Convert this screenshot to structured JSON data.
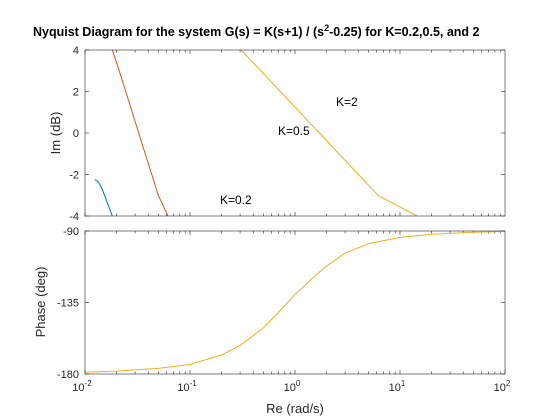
{
  "chart_data": [
    {
      "type": "line",
      "title_main": "Nyquist Diagram for the system G(s) = K(s+1) / (s",
      "title_sup": "2",
      "title_rest": "-0.25) for K=0.2,0.5, and 2",
      "xlabel": "",
      "ylabel": "Im (dB)",
      "ylim": [
        -4,
        4
      ],
      "yticks": [
        -4,
        -2,
        0,
        2,
        4
      ],
      "grid": false,
      "legend": "none",
      "series": [
        {
          "annotation": "K=0.2",
          "color": "#0072BD",
          "x": [
            0.1,
            0.12,
            0.14,
            0.16,
            0.18,
            0.2,
            0.22,
            0.24,
            0.26,
            0.28
          ],
          "y": [
            -2.25,
            -2.3,
            -2.4,
            -2.55,
            -2.75,
            -3.0,
            -3.25,
            -3.5,
            -3.75,
            -4.0
          ]
        },
        {
          "annotation": "K=0.5",
          "color": "#D95319",
          "x": [
            0.28,
            0.35,
            0.45,
            0.55,
            0.65,
            0.75,
            0.85
          ],
          "y": [
            4.0,
            3.0,
            1.5,
            0.0,
            -1.5,
            -3.0,
            -4.0
          ]
        },
        {
          "annotation": "K=2",
          "color": "#EDB120",
          "x": [
            1.6,
            2.0,
            2.5,
            3.0,
            3.4
          ],
          "y": [
            4.0,
            2.0,
            -0.5,
            -3.0,
            -4.0
          ]
        }
      ]
    },
    {
      "type": "line",
      "xlabel": "Re  (rad/s)",
      "ylabel": "Phase (deg)",
      "xscale": "log",
      "xlim": [
        0.01,
        100
      ],
      "xtick_bases": [
        "10",
        "10",
        "10",
        "10",
        "10"
      ],
      "xtick_exps": [
        "-2",
        "-1",
        "0",
        "1",
        "2"
      ],
      "ylim": [
        -180,
        -90
      ],
      "yticks": [
        -180,
        -135,
        -90
      ],
      "grid": false,
      "legend": "none",
      "series": [
        {
          "color": "#EDB120",
          "x": [
            0.01,
            0.02,
            0.05,
            0.1,
            0.2,
            0.3,
            0.5,
            0.7,
            1,
            1.5,
            2,
            3,
            5,
            10,
            20,
            50,
            100
          ],
          "y": [
            -178.8,
            -178.2,
            -176.5,
            -174.0,
            -168.0,
            -162.0,
            -151.0,
            -141.0,
            -130.0,
            -119.0,
            -112.0,
            -104.0,
            -98.0,
            -94.0,
            -92.0,
            -90.8,
            -90.3
          ]
        }
      ]
    }
  ]
}
